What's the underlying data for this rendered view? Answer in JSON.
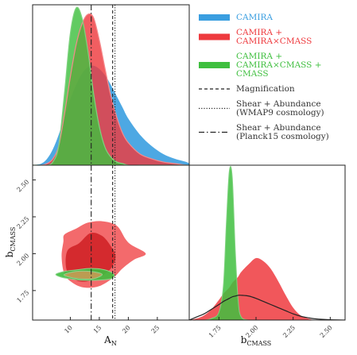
{
  "chart_data": {
    "type": "triangle-corner",
    "colors": {
      "camira": "#3a9ee0",
      "cmass": "#ee3a3e",
      "all": "#3fbf3f",
      "black": "#222222"
    },
    "params": {
      "A_N": {
        "label": "A",
        "label_sub": "N",
        "range": [
          3.5,
          30.5
        ],
        "ticks": [
          10,
          15,
          20,
          25
        ]
      },
      "b_CMASS": {
        "label": "b",
        "label_sub": "CMASS",
        "range": [
          1.55,
          2.6
        ],
        "ticks": [
          1.75,
          2.0,
          2.25,
          2.5
        ],
        "tick_labels": [
          "1.75",
          "2.00",
          "2.25",
          "2.50"
        ]
      }
    },
    "reference_lines": [
      {
        "name": "Magnification",
        "style": "dashed",
        "A_N": 17.3
      },
      {
        "name": "Shear + Abundance (WMAP9 cosmology)",
        "style": "dotted",
        "A_N": 17.7
      },
      {
        "name": "Shear + Abundance (Planck15 cosmology)",
        "style": "dashdot",
        "A_N": 13.6
      }
    ],
    "marginal_A_N": {
      "x": [
        3.5,
        5,
        6,
        7,
        8,
        9,
        10,
        11,
        12,
        13,
        14,
        15,
        16,
        17,
        18,
        19,
        20,
        22,
        24,
        26,
        28,
        30,
        30.5
      ],
      "series": [
        {
          "name": "CAMIRA",
          "values": [
            0,
            0.01,
            0.04,
            0.1,
            0.19,
            0.3,
            0.41,
            0.5,
            0.57,
            0.61,
            0.62,
            0.6,
            0.56,
            0.5,
            0.43,
            0.36,
            0.29,
            0.19,
            0.12,
            0.07,
            0.04,
            0.02,
            0.01
          ]
        },
        {
          "name": "CAMIRA + CAMIRA×CMASS",
          "values": [
            0,
            0,
            0.01,
            0.04,
            0.12,
            0.32,
            0.55,
            0.75,
            0.88,
            0.94,
            0.92,
            0.78,
            0.6,
            0.43,
            0.3,
            0.2,
            0.14,
            0.07,
            0.04,
            0.02,
            0.01,
            0,
            0
          ]
        },
        {
          "name": "CAMIRA + CAMIRA×CMASS + CMASS",
          "values": [
            0,
            0,
            0,
            0.02,
            0.12,
            0.45,
            0.82,
            0.98,
            0.92,
            0.72,
            0.45,
            0.24,
            0.11,
            0.05,
            0.02,
            0.01,
            0,
            0,
            0,
            0,
            0,
            0,
            0
          ]
        }
      ]
    },
    "marginal_b_CMASS": {
      "x": [
        1.55,
        1.6,
        1.65,
        1.7,
        1.75,
        1.78,
        1.8,
        1.82,
        1.84,
        1.86,
        1.88,
        1.9,
        1.95,
        2.0,
        2.05,
        2.1,
        2.15,
        2.2,
        2.25,
        2.3,
        2.35,
        2.4,
        2.5,
        2.6
      ],
      "series": [
        {
          "name": "CAMIRA + CAMIRA×CMASS",
          "values": [
            0,
            0.01,
            0.03,
            0.07,
            0.13,
            0.17,
            0.19,
            0.21,
            0.24,
            0.26,
            0.28,
            0.31,
            0.36,
            0.4,
            0.38,
            0.33,
            0.25,
            0.16,
            0.08,
            0.03,
            0.01,
            0,
            0,
            0
          ]
        },
        {
          "name": "CAMIRA + CAMIRA×CMASS + CMASS",
          "values": [
            0,
            0,
            0,
            0.01,
            0.05,
            0.22,
            0.62,
            0.96,
            0.92,
            0.45,
            0.12,
            0.02,
            0,
            0,
            0,
            0,
            0,
            0,
            0,
            0,
            0,
            0,
            0,
            0
          ]
        },
        {
          "name": "Shear + Abundance (Planck15 cosmology)",
          "values": [
            0,
            0.02,
            0.04,
            0.07,
            0.1,
            0.12,
            0.13,
            0.14,
            0.15,
            0.155,
            0.16,
            0.16,
            0.155,
            0.14,
            0.12,
            0.1,
            0.08,
            0.06,
            0.04,
            0.025,
            0.015,
            0.008,
            0.002,
            0
          ]
        }
      ]
    },
    "joint_contours": [
      {
        "series": "CAMIRA + CAMIRA×CMASS",
        "level": "95%",
        "fill": "#f36a6c",
        "points": [
          [
            9.0,
            2.13
          ],
          [
            11.0,
            2.17
          ],
          [
            13.0,
            2.21
          ],
          [
            15.5,
            2.22
          ],
          [
            18.0,
            2.19
          ],
          [
            19.5,
            2.1
          ],
          [
            20.5,
            2.06
          ],
          [
            23.0,
            2.0
          ],
          [
            21.0,
            1.96
          ],
          [
            19.0,
            1.9
          ],
          [
            17.5,
            1.84
          ],
          [
            15.0,
            1.78
          ],
          [
            12.5,
            1.77
          ],
          [
            10.5,
            1.8
          ],
          [
            9.0,
            1.86
          ],
          [
            8.5,
            1.98
          ],
          [
            8.8,
            2.08
          ]
        ]
      },
      {
        "series": "CAMIRA + CAMIRA×CMASS",
        "level": "68%",
        "fill": "#d42a2e",
        "points": [
          [
            9.5,
            2.02
          ],
          [
            11.5,
            2.07
          ],
          [
            13.5,
            2.14
          ],
          [
            15.5,
            2.12
          ],
          [
            17.0,
            2.05
          ],
          [
            17.8,
            1.98
          ],
          [
            17.0,
            1.9
          ],
          [
            15.0,
            1.84
          ],
          [
            12.5,
            1.81
          ],
          [
            10.5,
            1.83
          ],
          [
            9.3,
            1.9
          ]
        ]
      },
      {
        "series": "CAMIRA + CAMIRA×CMASS + CMASS",
        "level": "95%",
        "fill": "#3fbf3f",
        "points": [
          [
            7.5,
            1.86
          ],
          [
            9.0,
            1.88
          ],
          [
            11.0,
            1.89
          ],
          [
            13.5,
            1.9
          ],
          [
            16.0,
            1.89
          ],
          [
            17.5,
            1.86
          ],
          [
            17.0,
            1.83
          ],
          [
            14.5,
            1.82
          ],
          [
            12.0,
            1.82
          ],
          [
            10.0,
            1.83
          ],
          [
            8.5,
            1.84
          ]
        ]
      },
      {
        "series": "CAMIRA + CAMIRA×CMASS + CMASS",
        "level": "68%",
        "fill": "#c89a54",
        "points": [
          [
            9.0,
            1.86
          ],
          [
            11.0,
            1.88
          ],
          [
            13.5,
            1.88
          ],
          [
            15.5,
            1.86
          ],
          [
            14.0,
            1.83
          ],
          [
            11.5,
            1.83
          ],
          [
            9.5,
            1.845
          ]
        ]
      }
    ],
    "legend": {
      "placement": "top-right",
      "entries": [
        {
          "lines": [
            "CAMIRA"
          ],
          "color": "#3a9ee0",
          "style": "band"
        },
        {
          "lines": [
            "CAMIRA +",
            "CAMIRA×CMASS"
          ],
          "color": "#ee3a3e",
          "style": "band"
        },
        {
          "lines": [
            "CAMIRA +",
            "CAMIRA×CMASS +",
            "CMASS"
          ],
          "color": "#3fbf3f",
          "style": "band"
        },
        {
          "lines": [
            "Magnification"
          ],
          "color": "#222222",
          "style": "dashed"
        },
        {
          "lines": [
            "Shear + Abundance",
            "(WMAP9 cosmology)"
          ],
          "color": "#222222",
          "style": "dotted"
        },
        {
          "lines": [
            "Shear + Abundance",
            "(Planck15 cosmology)"
          ],
          "color": "#222222",
          "style": "dashdot"
        }
      ]
    }
  }
}
